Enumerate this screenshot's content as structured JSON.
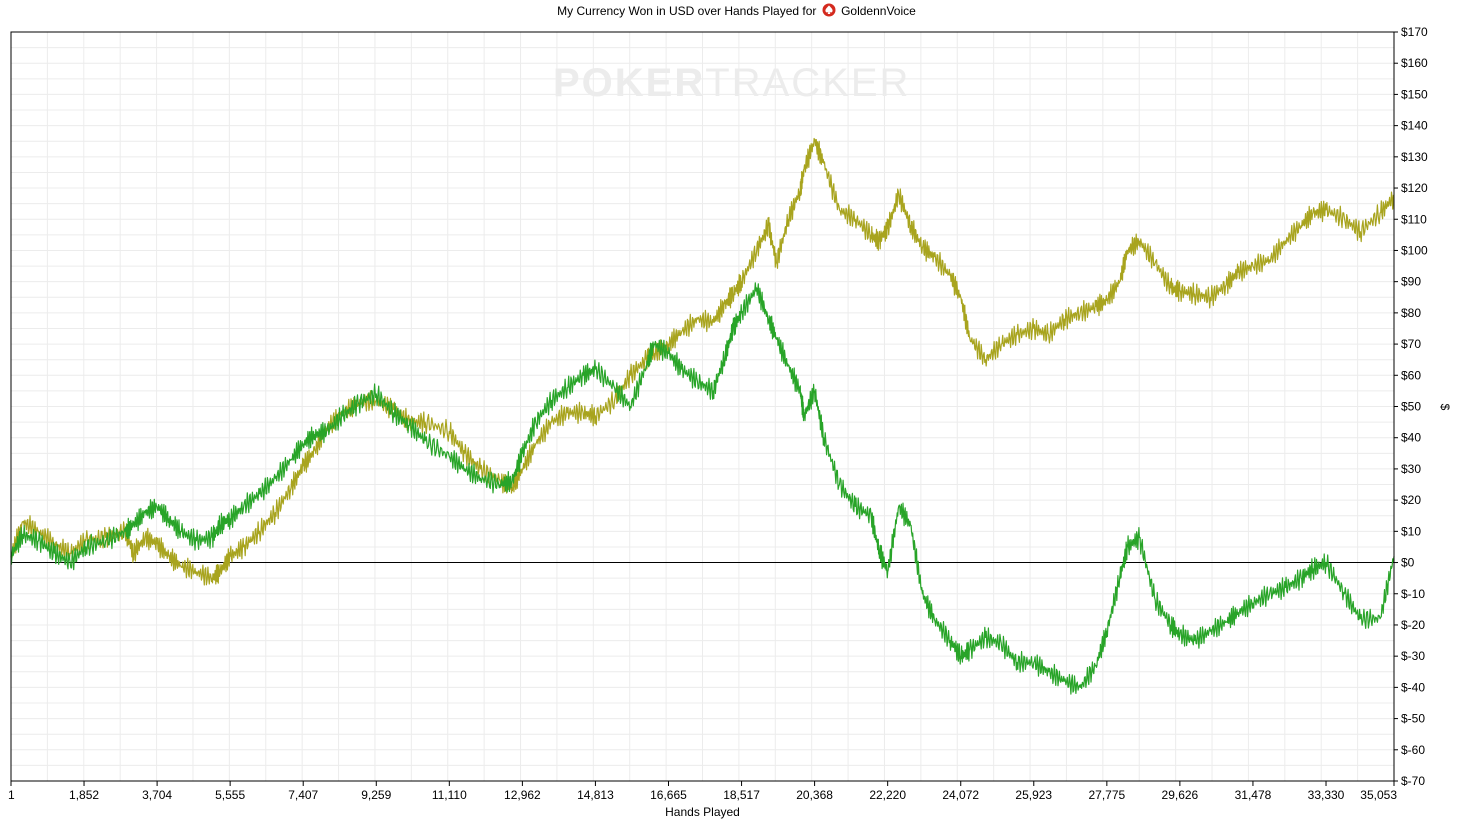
{
  "title_prefix": "My Currency Won in USD over Hands Played for",
  "player_name": "GoldennVoice",
  "watermark": {
    "part1": "POKER",
    "part2": "TRACKER"
  },
  "chart_data": {
    "type": "line",
    "xlabel": "Hands Played",
    "ylabel": "$",
    "xlim": [
      1,
      35053
    ],
    "ylim": [
      -70,
      170
    ],
    "grid": true,
    "x_tick_values": [
      1,
      1852,
      3704,
      5555,
      7407,
      9259,
      11110,
      12962,
      14813,
      16665,
      18517,
      20368,
      22220,
      24072,
      25923,
      27775,
      29626,
      31478,
      33330,
      35053
    ],
    "x_tick_labels": [
      "1",
      "1,852",
      "3,704",
      "5,555",
      "7,407",
      "9,259",
      "11,110",
      "12,962",
      "14,813",
      "16,665",
      "18,517",
      "20,368",
      "22,220",
      "24,072",
      "25,923",
      "27,775",
      "29,626",
      "31,478",
      "33,330",
      "35,053"
    ],
    "y_tick_values": [
      170,
      160,
      150,
      140,
      130,
      120,
      110,
      100,
      90,
      80,
      70,
      60,
      50,
      40,
      30,
      20,
      10,
      0,
      -10,
      -20,
      -30,
      -40,
      -50,
      -60,
      -70
    ],
    "y_tick_labels": [
      "$170",
      "$160",
      "$150",
      "$140",
      "$130",
      "$120",
      "$110",
      "$100",
      "$90",
      "$80",
      "$70",
      "$60",
      "$50",
      "$40",
      "$30",
      "$20",
      "$10",
      "$0",
      "$-10",
      "$-20",
      "$-30",
      "$-40",
      "$-50",
      "$-60",
      "$-70"
    ],
    "series": [
      {
        "color": "#a8a41e",
        "x": [
          1,
          300,
          700,
          1100,
          1500,
          1900,
          2400,
          2900,
          3100,
          3400,
          3700,
          4000,
          4300,
          4700,
          5100,
          5300,
          5555,
          5900,
          6300,
          6700,
          7100,
          7407,
          7700,
          8000,
          8400,
          8800,
          9259,
          9700,
          10100,
          10500,
          11110,
          11500,
          11900,
          12400,
          12700,
          12962,
          13300,
          13700,
          14100,
          14500,
          14813,
          15300,
          15700,
          16100,
          16300,
          16665,
          17000,
          17400,
          17800,
          18100,
          18300,
          18517,
          18900,
          19200,
          19400,
          19700,
          20000,
          20100,
          20368,
          20600,
          21000,
          21400,
          21800,
          22000,
          22220,
          22500,
          22800,
          23100,
          23400,
          23800,
          24072,
          24300,
          24700,
          25100,
          25500,
          25923,
          26300,
          26700,
          27100,
          27500,
          27775,
          28100,
          28300,
          28600,
          29000,
          29400,
          29626,
          30000,
          30400,
          30800,
          31100,
          31478,
          31900,
          32300,
          32700,
          33000,
          33330,
          33800,
          34200,
          34700,
          35053
        ],
        "y": [
          2,
          13,
          10,
          6,
          3,
          7,
          8,
          10,
          3,
          8,
          6,
          2,
          -1,
          -3,
          -5,
          -3,
          2,
          5,
          10,
          16,
          24,
          31,
          36,
          43,
          48,
          51,
          52,
          49,
          45,
          45,
          42,
          35,
          30,
          26,
          24,
          30,
          38,
          45,
          48,
          48,
          47,
          52,
          60,
          65,
          67,
          70,
          74,
          78,
          77,
          83,
          86,
          90,
          100,
          108,
          96,
          110,
          119,
          126,
          135,
          128,
          113,
          110,
          105,
          103,
          107,
          118,
          108,
          101,
          98,
          92,
          85,
          72,
          65,
          70,
          73,
          75,
          73,
          78,
          80,
          82,
          84,
          90,
          100,
          103,
          96,
          88,
          87,
          86,
          85,
          89,
          93,
          95,
          97,
          103,
          108,
          112,
          113,
          110,
          106,
          112,
          117
        ]
      },
      {
        "color": "#28a428",
        "x": [
          1,
          300,
          700,
          1100,
          1500,
          1900,
          2400,
          2900,
          3100,
          3400,
          3700,
          4000,
          4300,
          4700,
          5100,
          5300,
          5555,
          5900,
          6300,
          6700,
          7100,
          7407,
          7700,
          8000,
          8400,
          8800,
          9259,
          9700,
          10100,
          10500,
          11110,
          11500,
          11900,
          12400,
          12700,
          12962,
          13300,
          13700,
          14100,
          14500,
          14813,
          15300,
          15700,
          16100,
          16300,
          16665,
          17000,
          17400,
          17800,
          18100,
          18300,
          18517,
          18900,
          19200,
          19400,
          19700,
          20000,
          20100,
          20368,
          20600,
          21000,
          21400,
          21800,
          22000,
          22220,
          22500,
          22800,
          23100,
          23400,
          23800,
          24072,
          24300,
          24700,
          25100,
          25500,
          25923,
          26300,
          26700,
          27100,
          27500,
          27775,
          28100,
          28300,
          28600,
          29000,
          29400,
          29626,
          30000,
          30400,
          30800,
          31100,
          31478,
          31900,
          32300,
          32700,
          33000,
          33330,
          33800,
          34200,
          34700,
          35053
        ],
        "y": [
          2,
          9,
          7,
          3,
          0,
          5,
          7,
          10,
          12,
          16,
          18,
          14,
          10,
          7,
          8,
          12,
          14,
          18,
          22,
          27,
          33,
          38,
          41,
          42,
          47,
          51,
          54,
          48,
          44,
          39,
          34,
          30,
          27,
          25,
          26,
          35,
          45,
          52,
          56,
          60,
          62,
          56,
          50,
          63,
          70,
          67,
          62,
          58,
          55,
          66,
          75,
          80,
          88,
          78,
          72,
          63,
          55,
          47,
          55,
          40,
          25,
          18,
          15,
          4,
          -3,
          18,
          12,
          -10,
          -18,
          -25,
          -30,
          -28,
          -24,
          -26,
          -32,
          -32,
          -35,
          -38,
          -40,
          -33,
          -22,
          -5,
          5,
          8,
          -12,
          -20,
          -23,
          -25,
          -22,
          -19,
          -16,
          -13,
          -10,
          -8,
          -5,
          -2,
          0,
          -10,
          -18,
          -18,
          2
        ]
      }
    ]
  }
}
